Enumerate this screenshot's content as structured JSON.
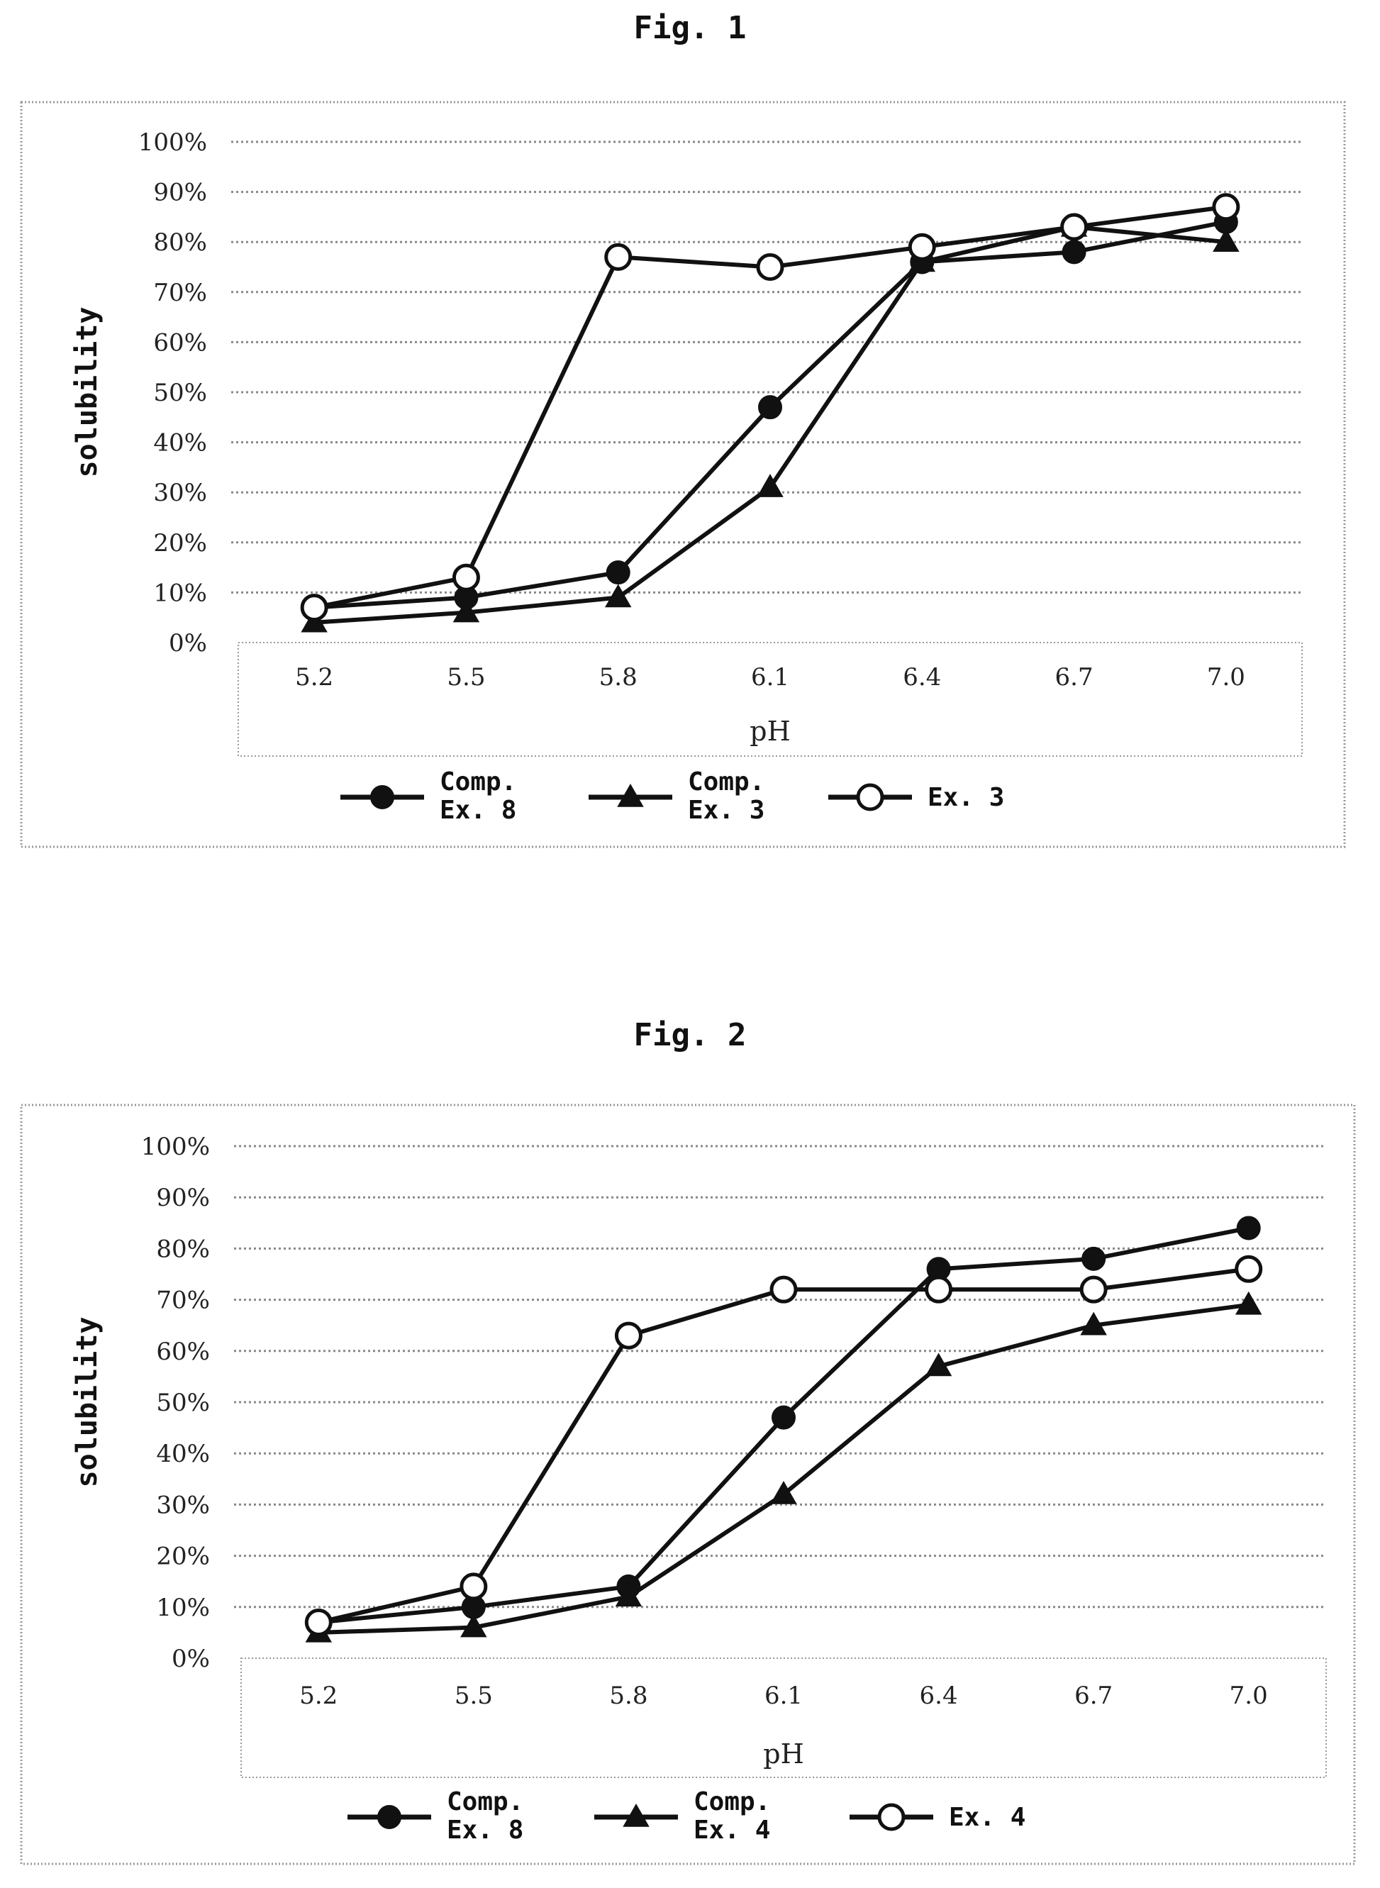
{
  "figures": [
    {
      "title": "Fig. 1"
    },
    {
      "title": "Fig. 2"
    }
  ],
  "chart_data": [
    {
      "type": "line",
      "title": "Fig. 1",
      "xlabel": "pH",
      "ylabel": "solubility",
      "categories": [
        "5.2",
        "5.5",
        "5.8",
        "6.1",
        "6.4",
        "6.7",
        "7.0"
      ],
      "y_ticks": [
        "0%",
        "10%",
        "20%",
        "30%",
        "40%",
        "50%",
        "60%",
        "70%",
        "80%",
        "90%",
        "100%"
      ],
      "ylim": [
        0,
        100
      ],
      "grid": true,
      "legend_position": "bottom",
      "series": [
        {
          "name": "Comp. Ex. 8",
          "legend_lines": [
            "Comp.",
            "Ex. 8"
          ],
          "marker": "filled-circle",
          "values": [
            7,
            9,
            14,
            47,
            76,
            78,
            84
          ]
        },
        {
          "name": "Comp. Ex. 3",
          "legend_lines": [
            "Comp.",
            "Ex. 3"
          ],
          "marker": "filled-triangle",
          "values": [
            4,
            6,
            9,
            31,
            76,
            83,
            80
          ]
        },
        {
          "name": "Ex. 3",
          "legend_lines": [
            "Ex. 3"
          ],
          "marker": "open-circle",
          "values": [
            7,
            13,
            77,
            75,
            79,
            83,
            87
          ]
        }
      ]
    },
    {
      "type": "line",
      "title": "Fig. 2",
      "xlabel": "pH",
      "ylabel": "solubility",
      "categories": [
        "5.2",
        "5.5",
        "5.8",
        "6.1",
        "6.4",
        "6.7",
        "7.0"
      ],
      "y_ticks": [
        "0%",
        "10%",
        "20%",
        "30%",
        "40%",
        "50%",
        "60%",
        "70%",
        "80%",
        "90%",
        "100%"
      ],
      "ylim": [
        0,
        100
      ],
      "grid": true,
      "legend_position": "bottom",
      "series": [
        {
          "name": "Comp. Ex. 8",
          "legend_lines": [
            "Comp.",
            "Ex. 8"
          ],
          "marker": "filled-circle",
          "values": [
            7,
            10,
            14,
            47,
            76,
            78,
            84
          ]
        },
        {
          "name": "Comp. Ex. 4",
          "legend_lines": [
            "Comp.",
            "Ex. 4"
          ],
          "marker": "filled-triangle",
          "values": [
            5,
            6,
            12,
            32,
            57,
            65,
            69
          ]
        },
        {
          "name": "Ex. 4",
          "legend_lines": [
            "Ex. 4"
          ],
          "marker": "open-circle",
          "values": [
            7,
            14,
            63,
            72,
            72,
            72,
            76
          ]
        }
      ]
    }
  ]
}
